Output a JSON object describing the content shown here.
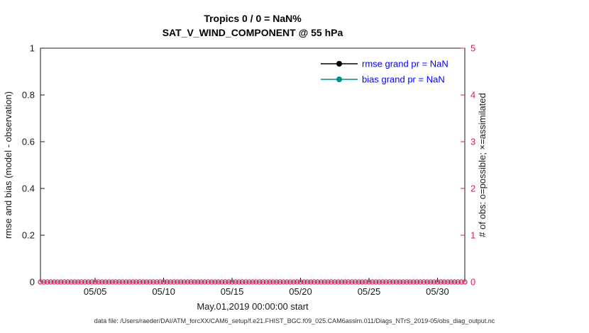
{
  "figure": {
    "footer": "data file: /Users/raeder/DAI/ATM_forcXX/CAM6_setup/f.e21.FHIST_BGC.f09_025.CAM6assim.011/Diags_NTrS_2019-05/obs_diag_output.nc"
  },
  "chart_data": {
    "type": "line",
    "title": "Tropics 0 / 0 = NaN%",
    "subtitle": "SAT_V_WIND_COMPONENT @ 55 hPa",
    "xlabel": "May.01,2019 00:00:00 start",
    "ylabel_left": "rmse and bias (model - observation)",
    "ylabel_right": "# of obs: o=possible; ×=assimilated",
    "grid": false,
    "x_axis": {
      "range_days": [
        0,
        31
      ],
      "start_date": "May.01,2019 00:00:00",
      "tick_labels": [
        "05/05",
        "05/10",
        "05/15",
        "05/20",
        "05/25",
        "05/30"
      ],
      "tick_days": [
        4,
        9,
        14,
        19,
        24,
        29
      ]
    },
    "y_axis_left": {
      "lim": [
        0,
        1
      ],
      "ticks": [
        0,
        0.2,
        0.4,
        0.6,
        0.8,
        1
      ],
      "color": "#1a1a1a"
    },
    "y_axis_right": {
      "lim": [
        0,
        5
      ],
      "ticks": [
        0,
        1,
        2,
        3,
        4,
        5
      ],
      "color": "#d81b60"
    },
    "legend": {
      "location": "top-right-inside",
      "frame": false,
      "text_color": "#0000ff",
      "entries": [
        {
          "label": "rmse grand pr = NaN",
          "color": "#000000",
          "marker": "filled-circle"
        },
        {
          "label": "bias grand pr = NaN",
          "color": "#008b8b",
          "marker": "filled-circle"
        }
      ]
    },
    "series": [
      {
        "name": "rmse",
        "axis": "left",
        "color": "#000000",
        "values": "NaN (no points plotted)"
      },
      {
        "name": "bias",
        "axis": "left",
        "color": "#008b8b",
        "values": "NaN (no points plotted)"
      }
    ],
    "obs_markers": {
      "axis": "right",
      "marker": "o",
      "meaning": "possible observations count = 0 at every time step",
      "color": "#d81b60",
      "y_value": 0,
      "x_start_day": 0,
      "x_end_day": 31,
      "interval_days": 0.25
    }
  }
}
